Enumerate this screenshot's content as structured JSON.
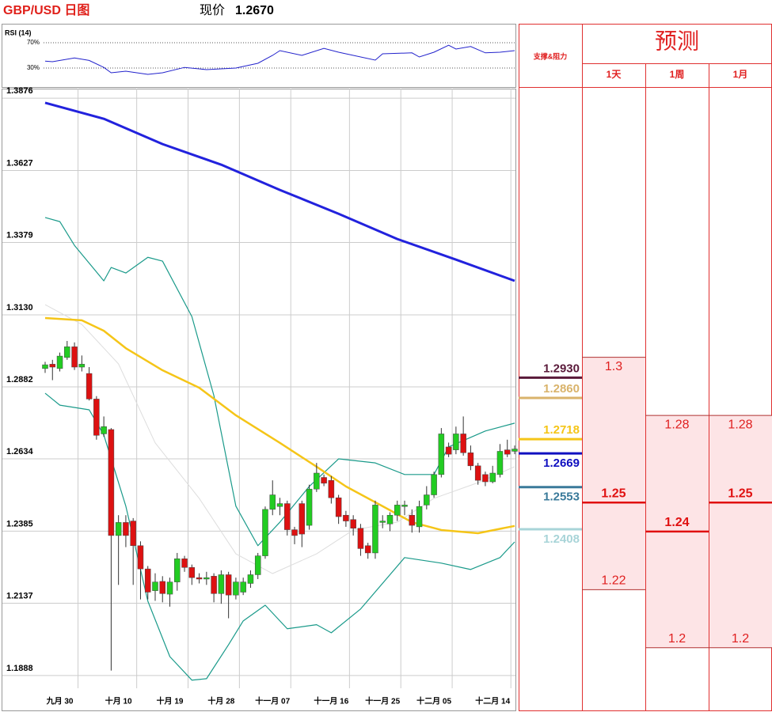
{
  "chart_data": {
    "type": "candlestick",
    "title": "GBP/USD 日图",
    "price_label": "现价",
    "price": "1.2670",
    "categories": [
      null,
      null,
      "九月 30",
      null,
      null,
      null,
      null,
      null,
      null,
      null,
      "十月 10",
      null,
      null,
      null,
      null,
      null,
      null,
      "十月 19",
      null,
      null,
      null,
      null,
      null,
      null,
      "十月 28",
      null,
      null,
      null,
      null,
      null,
      null,
      "十一月 07",
      null,
      null,
      null,
      null,
      null,
      null,
      null,
      "十一月 16",
      null,
      null,
      null,
      null,
      null,
      null,
      "十一月 25",
      null,
      null,
      null,
      null,
      null,
      null,
      "十二月 05",
      null,
      null,
      null,
      null,
      null,
      null,
      null,
      "十二月 14",
      null,
      null,
      null
    ],
    "open": [
      1.2945,
      1.296,
      1.2945,
      1.2983,
      1.302,
      1.295,
      1.2928,
      1.284,
      1.272,
      1.2735,
      1.237,
      1.2415,
      1.242,
      1.2335,
      1.2255,
      1.218,
      1.2212,
      1.2168,
      1.221,
      1.229,
      1.226,
      1.2225,
      1.222,
      1.223,
      1.217,
      1.2235,
      1.2165,
      1.2175,
      1.2205,
      1.2235,
      1.23,
      1.246,
      1.247,
      1.248,
      1.239,
      1.248,
      1.2405,
      1.253,
      1.257,
      1.256,
      1.25,
      1.244,
      1.2425,
      1.2395,
      1.2335,
      1.231,
      1.2415,
      1.241,
      1.244,
      1.247,
      1.244,
      1.24,
      1.2475,
      1.251,
      1.258,
      1.2675,
      1.2665,
      1.272,
      1.2655,
      1.261,
      1.258,
      1.2555,
      1.258,
      1.2665,
      1.266
    ],
    "high": [
      1.2968,
      1.2975,
      1.3,
      1.304,
      1.3035,
      1.299,
      1.295,
      1.285,
      1.278,
      1.274,
      1.244,
      1.244,
      1.243,
      1.235,
      1.2265,
      1.224,
      1.223,
      1.2225,
      1.231,
      1.23,
      1.227,
      1.224,
      1.2245,
      1.224,
      1.225,
      1.2245,
      1.2225,
      1.2225,
      1.225,
      1.231,
      1.247,
      1.256,
      1.25,
      1.249,
      1.24,
      1.249,
      1.2545,
      1.262,
      1.258,
      1.2575,
      1.251,
      1.2455,
      1.244,
      1.241,
      1.2345,
      1.249,
      1.244,
      1.245,
      1.249,
      1.249,
      1.246,
      1.249,
      1.254,
      1.259,
      1.274,
      1.269,
      1.2745,
      1.278,
      1.268,
      1.262,
      1.259,
      1.261,
      1.2685,
      1.27,
      1.268
    ],
    "low": [
      1.293,
      1.2905,
      1.2935,
      1.2975,
      1.294,
      1.2935,
      1.2835,
      1.27,
      1.271,
      1.1905,
      1.22,
      1.233,
      1.22,
      1.215,
      1.215,
      1.2145,
      1.214,
      1.2125,
      1.218,
      1.2245,
      1.22,
      1.2205,
      1.22,
      1.214,
      1.2135,
      1.2085,
      1.215,
      1.2165,
      1.219,
      1.222,
      1.229,
      1.244,
      1.244,
      1.237,
      1.234,
      1.233,
      1.239,
      1.252,
      1.254,
      1.248,
      1.241,
      1.24,
      1.237,
      1.23,
      1.229,
      1.229,
      1.2395,
      1.2385,
      1.242,
      1.244,
      1.238,
      1.238,
      1.246,
      1.25,
      1.257,
      1.264,
      1.265,
      1.2645,
      1.2595,
      1.2545,
      1.254,
      1.255,
      1.257,
      1.264,
      1.265
    ],
    "close": [
      1.2958,
      1.295,
      1.2988,
      1.302,
      1.295,
      1.296,
      1.284,
      1.2715,
      1.2745,
      1.237,
      1.2415,
      1.237,
      1.2335,
      1.2255,
      1.2175,
      1.221,
      1.217,
      1.221,
      1.229,
      1.226,
      1.2225,
      1.222,
      1.2225,
      1.217,
      1.2235,
      1.2165,
      1.221,
      1.221,
      1.2235,
      1.23,
      1.246,
      1.251,
      1.248,
      1.239,
      1.237,
      1.2375,
      1.253,
      1.2585,
      1.255,
      1.25,
      1.2435,
      1.242,
      1.2395,
      1.2325,
      1.231,
      1.2475,
      1.242,
      1.244,
      1.2475,
      1.2475,
      1.2405,
      1.247,
      1.251,
      1.258,
      1.272,
      1.265,
      1.272,
      1.2655,
      1.261,
      1.256,
      1.2555,
      1.2585,
      1.266,
      1.265,
      1.2668
    ],
    "up_color": "#22cc22",
    "down_color": "#dd1111",
    "ylim": [
      1.1844,
      1.3909
    ],
    "yticks": [
      1.3876,
      1.3627,
      1.3379,
      {
        "value": 1.313,
        "label": "1.3130"
      },
      1.2882,
      1.2634,
      1.2385,
      1.2137,
      1.1888
    ],
    "grid": true,
    "overlays": [
      {
        "color": "#2222dd",
        "width": 3,
        "x": [
          0,
          8,
          16,
          24,
          32,
          40,
          48,
          56,
          64
        ],
        "values": [
          1.386,
          1.3805,
          1.3718,
          1.3647,
          1.356,
          1.3478,
          1.3391,
          1.332,
          1.3247
        ]
      },
      {
        "color": "#f5c518",
        "width": 2.5,
        "x": [
          0,
          5,
          8,
          11,
          16,
          21,
          26,
          32,
          37,
          41,
          46,
          50,
          54,
          59,
          64
        ],
        "values": [
          1.3119,
          1.3111,
          1.3075,
          1.3015,
          1.2939,
          1.2879,
          1.2784,
          1.2689,
          1.2607,
          1.2539,
          1.2471,
          1.2416,
          1.2389,
          1.2378,
          1.2403
        ]
      },
      {
        "color": "#1a9a8a",
        "width": 1.2,
        "x": [
          0,
          2,
          4,
          8,
          9,
          11,
          14,
          16,
          20,
          23,
          26,
          29,
          32,
          36,
          40,
          45,
          49,
          53,
          55,
          60,
          64
        ],
        "values": [
          1.3465,
          1.3451,
          1.3369,
          1.3247,
          1.3293,
          1.3274,
          1.3328,
          1.3315,
          1.3124,
          1.2852,
          1.2471,
          1.2335,
          1.2416,
          1.2539,
          1.2634,
          1.262,
          1.258,
          1.258,
          1.2675,
          1.273,
          1.2757
        ]
      },
      {
        "color": "#1a9a8a",
        "width": 1.2,
        "x": [
          0,
          2,
          6,
          8,
          11,
          14,
          17,
          20,
          22,
          25,
          27,
          30,
          33,
          37,
          39,
          43,
          49,
          54,
          58,
          62,
          64
        ],
        "values": [
          1.286,
          1.2819,
          1.2803,
          1.2716,
          1.2471,
          1.2144,
          1.1953,
          1.1872,
          1.1877,
          1.1994,
          1.2076,
          1.213,
          1.2049,
          1.2063,
          1.2035,
          1.2117,
          1.2294,
          1.2275,
          1.2253,
          1.2294,
          1.2348
        ]
      },
      {
        "color": "#dddddd",
        "width": 1,
        "x": [
          0,
          5,
          10,
          15,
          21,
          26,
          31,
          37,
          42,
          48,
          53,
          59,
          64
        ],
        "values": [
          1.3165,
          1.3097,
          1.2961,
          1.2689,
          1.2498,
          1.2307,
          1.2239,
          1.2307,
          1.2389,
          1.2416,
          1.2498,
          1.2552,
          1.2607
        ]
      }
    ],
    "rsi": {
      "title": "RSI (14)",
      "color": "#2222cc",
      "ylim": [
        0,
        100
      ],
      "yticks": [
        {
          "value": 70,
          "label": "70%"
        },
        {
          "value": 30,
          "label": "30%"
        }
      ],
      "x": [
        0,
        1,
        4,
        6,
        8,
        9,
        11,
        14,
        16,
        19,
        22,
        26,
        29,
        31,
        32,
        35,
        38,
        40,
        45,
        46,
        50,
        51,
        53,
        55,
        56,
        58,
        60,
        62,
        64
      ],
      "values": [
        41,
        40,
        46,
        42,
        31,
        22.5,
        25,
        20,
        22.5,
        31,
        27.5,
        30,
        37.5,
        50,
        57.5,
        50,
        61,
        55,
        42.5,
        52.5,
        54,
        47.5,
        55,
        66,
        60,
        64,
        54,
        55,
        57.5
      ]
    },
    "levels": [
      {
        "value": 1.293,
        "label": "1.2930",
        "color": "#5a1a3a"
      },
      {
        "value": 1.286,
        "label": "1.2860",
        "color": "#d9b36b"
      },
      {
        "value": 1.2718,
        "label": "1.2718",
        "color": "#f5c518"
      },
      {
        "value": 1.2669,
        "label": "1.2669",
        "color": "#1010c0"
      },
      {
        "value": 1.2553,
        "label": "1.2553",
        "color": "#3a7a9a"
      },
      {
        "value": 1.2408,
        "label": "1.2408",
        "color": "#a8d4d8"
      }
    ],
    "current": 1.267,
    "forecast": {
      "title": "预测",
      "row_header": "支撑&阻力",
      "columns": [
        {
          "name": "1天",
          "high": 1.3,
          "mid": 1.25,
          "low": 1.22
        },
        {
          "name": "1周",
          "high": 1.28,
          "mid": 1.24,
          "low": 1.2
        },
        {
          "name": "1月",
          "high": 1.28,
          "mid": 1.25,
          "low": 1.2
        }
      ]
    }
  }
}
